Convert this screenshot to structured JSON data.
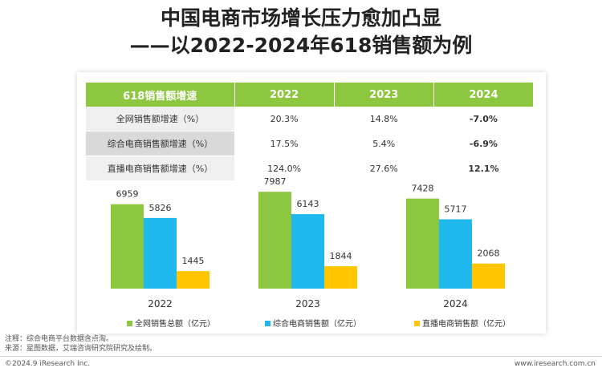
{
  "title_line1": "中国电商市场增长压力愈加凸显",
  "title_line2": "——以2022-2024年618销售额为例",
  "table": {
    "header": [
      "618销售额增速",
      "2022",
      "2023",
      "2024"
    ],
    "rows": [
      {
        "label": "全网销售额增速（%）",
        "values": [
          "20.3%",
          "14.8%",
          "-7.0%"
        ]
      },
      {
        "label": "综合电商销售额增速（%）",
        "values": [
          "17.5%",
          "5.4%",
          "-6.9%"
        ]
      },
      {
        "label": "直播电商销售额增速（%）",
        "values": [
          "124.0%",
          "27.6%",
          "12.1%"
        ]
      }
    ]
  },
  "chart_data": {
    "type": "bar",
    "categories": [
      "2022",
      "2023",
      "2024"
    ],
    "series": [
      {
        "name": "全网销售总额（亿元）",
        "values": [
          6959,
          7987,
          7428
        ],
        "color": "#8dc63f"
      },
      {
        "name": "综合电商销售额（亿元）",
        "values": [
          5826,
          6143,
          5717
        ],
        "color": "#1fb8ec"
      },
      {
        "name": "直播电商销售额（亿元）",
        "values": [
          1445,
          1844,
          2068
        ],
        "color": "#ffc600"
      }
    ],
    "ylim": [
      0,
      8000
    ]
  },
  "footer": {
    "note": "注释：综合电商平台数据含点淘。",
    "source": "来源：星图数据，艾瑞咨询研究院研究及绘制。",
    "copyright": "©2024.9 iResearch Inc.",
    "website": "www.iresearch.com.cn"
  }
}
